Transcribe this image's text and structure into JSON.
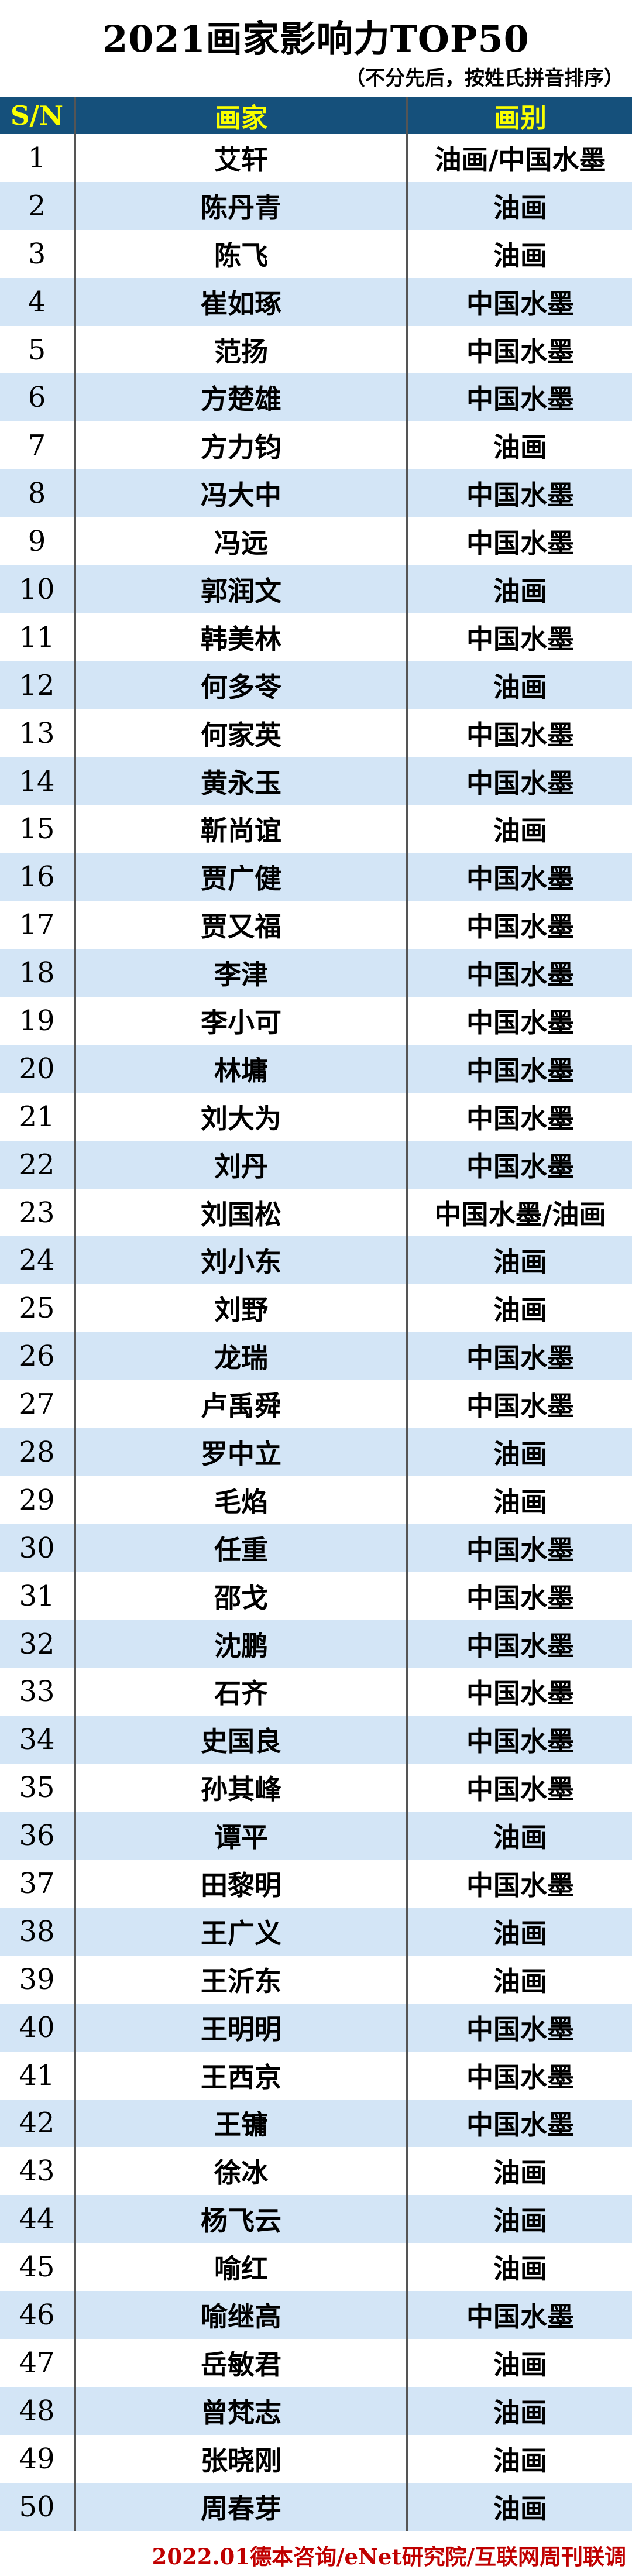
{
  "chart_data": {
    "type": "table",
    "title": "2021画家影响力TOP50",
    "subtitle": "（不分先后，按姓氏拼音排序）",
    "columns": [
      "S/N",
      "画家",
      "画别"
    ],
    "rows": [
      {
        "sn": 1,
        "name": "艾轩",
        "category": "油画/中国水墨"
      },
      {
        "sn": 2,
        "name": "陈丹青",
        "category": "油画"
      },
      {
        "sn": 3,
        "name": "陈飞",
        "category": "油画"
      },
      {
        "sn": 4,
        "name": "崔如琢",
        "category": "中国水墨"
      },
      {
        "sn": 5,
        "name": "范扬",
        "category": "中国水墨"
      },
      {
        "sn": 6,
        "name": "方楚雄",
        "category": "中国水墨"
      },
      {
        "sn": 7,
        "name": "方力钧",
        "category": "油画"
      },
      {
        "sn": 8,
        "name": "冯大中",
        "category": "中国水墨"
      },
      {
        "sn": 9,
        "name": "冯远",
        "category": "中国水墨"
      },
      {
        "sn": 10,
        "name": "郭润文",
        "category": "油画"
      },
      {
        "sn": 11,
        "name": "韩美林",
        "category": "中国水墨"
      },
      {
        "sn": 12,
        "name": "何多苓",
        "category": "油画"
      },
      {
        "sn": 13,
        "name": "何家英",
        "category": "中国水墨"
      },
      {
        "sn": 14,
        "name": "黄永玉",
        "category": "中国水墨"
      },
      {
        "sn": 15,
        "name": "靳尚谊",
        "category": "油画"
      },
      {
        "sn": 16,
        "name": "贾广健",
        "category": "中国水墨"
      },
      {
        "sn": 17,
        "name": "贾又福",
        "category": "中国水墨"
      },
      {
        "sn": 18,
        "name": "李津",
        "category": "中国水墨"
      },
      {
        "sn": 19,
        "name": "李小可",
        "category": "中国水墨"
      },
      {
        "sn": 20,
        "name": "林墉",
        "category": "中国水墨"
      },
      {
        "sn": 21,
        "name": "刘大为",
        "category": "中国水墨"
      },
      {
        "sn": 22,
        "name": "刘丹",
        "category": "中国水墨"
      },
      {
        "sn": 23,
        "name": "刘国松",
        "category": "中国水墨/油画"
      },
      {
        "sn": 24,
        "name": "刘小东",
        "category": "油画"
      },
      {
        "sn": 25,
        "name": "刘野",
        "category": "油画"
      },
      {
        "sn": 26,
        "name": "龙瑞",
        "category": "中国水墨"
      },
      {
        "sn": 27,
        "name": "卢禹舜",
        "category": "中国水墨"
      },
      {
        "sn": 28,
        "name": "罗中立",
        "category": "油画"
      },
      {
        "sn": 29,
        "name": "毛焰",
        "category": "油画"
      },
      {
        "sn": 30,
        "name": "任重",
        "category": "中国水墨"
      },
      {
        "sn": 31,
        "name": "邵戈",
        "category": "中国水墨"
      },
      {
        "sn": 32,
        "name": "沈鹏",
        "category": "中国水墨"
      },
      {
        "sn": 33,
        "name": "石齐",
        "category": "中国水墨"
      },
      {
        "sn": 34,
        "name": "史国良",
        "category": "中国水墨"
      },
      {
        "sn": 35,
        "name": "孙其峰",
        "category": "中国水墨"
      },
      {
        "sn": 36,
        "name": "谭平",
        "category": "油画"
      },
      {
        "sn": 37,
        "name": "田黎明",
        "category": "中国水墨"
      },
      {
        "sn": 38,
        "name": "王广义",
        "category": "油画"
      },
      {
        "sn": 39,
        "name": "王沂东",
        "category": "油画"
      },
      {
        "sn": 40,
        "name": "王明明",
        "category": "中国水墨"
      },
      {
        "sn": 41,
        "name": "王西京",
        "category": "中国水墨"
      },
      {
        "sn": 42,
        "name": "王镛",
        "category": "中国水墨"
      },
      {
        "sn": 43,
        "name": "徐冰",
        "category": "油画"
      },
      {
        "sn": 44,
        "name": "杨飞云",
        "category": "油画"
      },
      {
        "sn": 45,
        "name": "喻红",
        "category": "油画"
      },
      {
        "sn": 46,
        "name": "喻继高",
        "category": "中国水墨"
      },
      {
        "sn": 47,
        "name": "岳敏君",
        "category": "油画"
      },
      {
        "sn": 48,
        "name": "曾梵志",
        "category": "油画"
      },
      {
        "sn": 49,
        "name": "张晓刚",
        "category": "油画"
      },
      {
        "sn": 50,
        "name": "周春芽",
        "category": "油画"
      }
    ],
    "footer": "2022.01德本咨询/eNet研究院/互联网周刊联调",
    "layout": {
      "grid": false,
      "zebra_striping": true,
      "header_position": "top"
    }
  },
  "colors": {
    "header_bg": "#15507B",
    "header_fg": "#FAFF00",
    "alt_bg": "#D3E5F6",
    "divider": "#555555",
    "footer_fg": "#C00000",
    "text": "#000000"
  }
}
